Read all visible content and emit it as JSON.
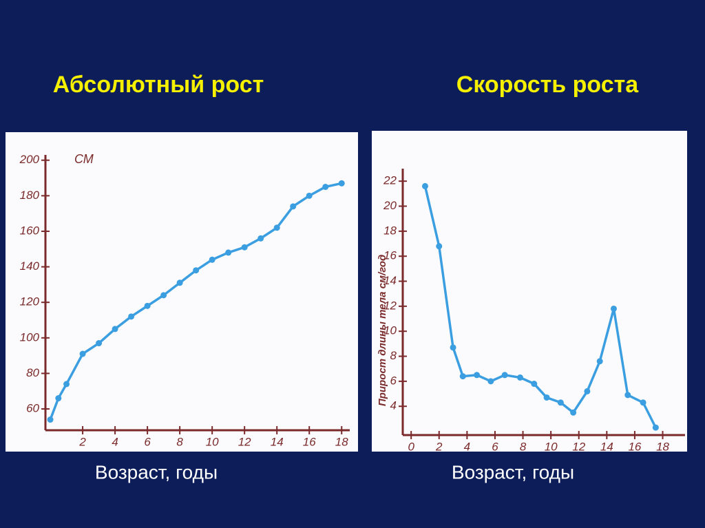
{
  "chart_data": [
    {
      "type": "line",
      "title": "Абсолютный рост",
      "ylabel": "СМ",
      "xlabel": "Возраст, годы",
      "x": [
        0,
        0.5,
        1,
        2,
        3,
        4,
        5,
        6,
        7,
        8,
        9,
        10,
        11,
        12,
        13,
        14,
        15,
        16,
        17,
        18
      ],
      "series": [
        {
          "name": null,
          "color": "#3a9ee0",
          "values": [
            54,
            66,
            74,
            91,
            97,
            105,
            112,
            118,
            124,
            131,
            138,
            144,
            148,
            151,
            156,
            162,
            174,
            180,
            185,
            187
          ]
        }
      ],
      "xlim": [
        -0.3,
        18.5
      ],
      "xticks": [
        2,
        4,
        6,
        8,
        10,
        12,
        14,
        16,
        18
      ],
      "ylim": [
        48,
        203
      ],
      "yticks": [
        60,
        80,
        100,
        120,
        140,
        160,
        180,
        200
      ]
    },
    {
      "type": "line",
      "title": "Скорость роста",
      "ylabel": "Прирост длины тела см/год",
      "xlabel": "Возраст, годы",
      "x": [
        1,
        2,
        3,
        3.7,
        4.7,
        5.7,
        6.7,
        7.8,
        8.8,
        9.7,
        10.7,
        11.6,
        12.6,
        13.5,
        14.5,
        15.5,
        16.6,
        17.5
      ],
      "series": [
        {
          "name": null,
          "color": "#3a9ee0",
          "values": [
            21.6,
            16.8,
            8.7,
            6.4,
            6.5,
            6.0,
            6.5,
            6.3,
            5.8,
            4.7,
            4.3,
            3.5,
            5.2,
            7.6,
            11.8,
            4.9,
            4.3,
            2.3
          ]
        }
      ],
      "xlim": [
        -0.6,
        19.6
      ],
      "xticks": [
        0,
        2,
        4,
        6,
        8,
        10,
        12,
        14,
        16,
        18
      ],
      "ylim": [
        1.7,
        23
      ],
      "yticks": [
        4,
        6,
        8,
        10,
        12,
        14,
        16,
        18,
        20,
        22
      ]
    }
  ]
}
